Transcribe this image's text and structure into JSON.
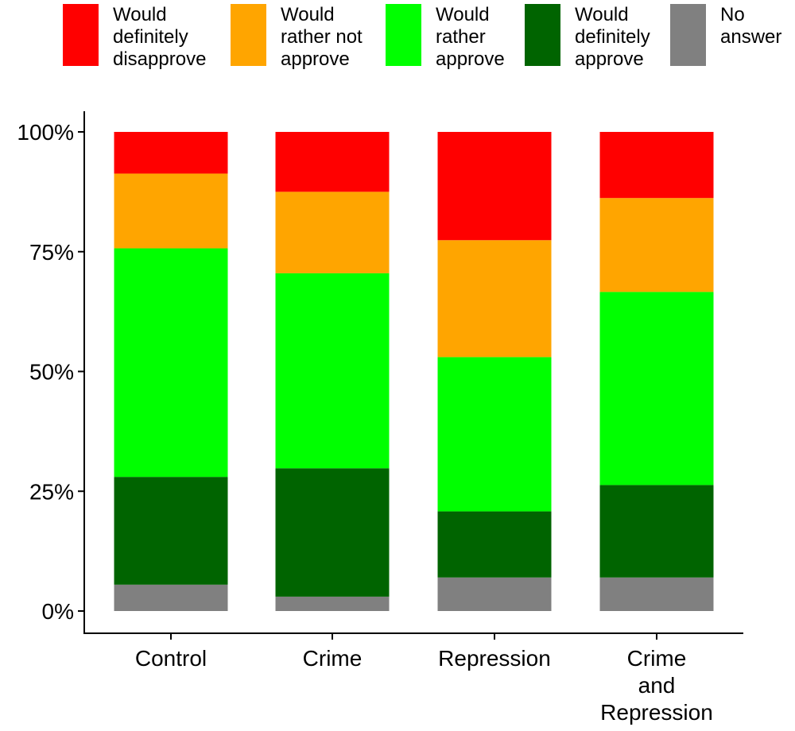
{
  "chart_data": {
    "type": "bar",
    "stacked": true,
    "title": "",
    "xlabel": "",
    "ylabel": "",
    "ylim": [
      0,
      100
    ],
    "y_ticks": [
      {
        "value": 0,
        "label": "0%"
      },
      {
        "value": 25,
        "label": "25%"
      },
      {
        "value": 50,
        "label": "50%"
      },
      {
        "value": 75,
        "label": "75%"
      },
      {
        "value": 100,
        "label": "100%"
      }
    ],
    "categories": [
      {
        "key": "control",
        "lines": [
          "Control"
        ]
      },
      {
        "key": "crime",
        "lines": [
          "Crime"
        ]
      },
      {
        "key": "repression",
        "lines": [
          "Repression"
        ]
      },
      {
        "key": "crime-and-repression",
        "lines": [
          "Crime",
          "and",
          "Repression"
        ]
      }
    ],
    "series": [
      {
        "key": "no-answer",
        "name": "No answer",
        "color": "#808080",
        "values": [
          5.5,
          3.0,
          7.0,
          7.0
        ]
      },
      {
        "key": "definitely-approve",
        "name": "Would definitely approve",
        "color": "#006400",
        "values": [
          22.5,
          26.8,
          13.8,
          19.3
        ]
      },
      {
        "key": "rather-approve",
        "name": "Would rather approve",
        "color": "#00FF00",
        "values": [
          47.7,
          40.7,
          32.2,
          40.3
        ]
      },
      {
        "key": "rather-not-approve",
        "name": "Would rather not approve",
        "color": "#FFA500",
        "values": [
          15.6,
          17.0,
          24.4,
          19.6
        ]
      },
      {
        "key": "definitely-disapprove",
        "name": "Would definitely disapprove",
        "color": "#FF0000",
        "values": [
          8.7,
          12.5,
          22.6,
          13.8
        ]
      }
    ],
    "legend": {
      "position": "top",
      "items": [
        {
          "key": "definitely-disapprove",
          "label": "Would\ndefinitely\ndisapprove",
          "color": "#FF0000"
        },
        {
          "key": "rather-not-approve",
          "label": "Would\nrather not\napprove",
          "color": "#FFA500"
        },
        {
          "key": "rather-approve",
          "label": "Would\nrather\napprove",
          "color": "#00FF00"
        },
        {
          "key": "definitely-approve",
          "label": "Would\ndefinitely\napprove",
          "color": "#006400"
        },
        {
          "key": "no-answer",
          "label": "No\nanswer",
          "color": "#808080"
        }
      ]
    }
  }
}
